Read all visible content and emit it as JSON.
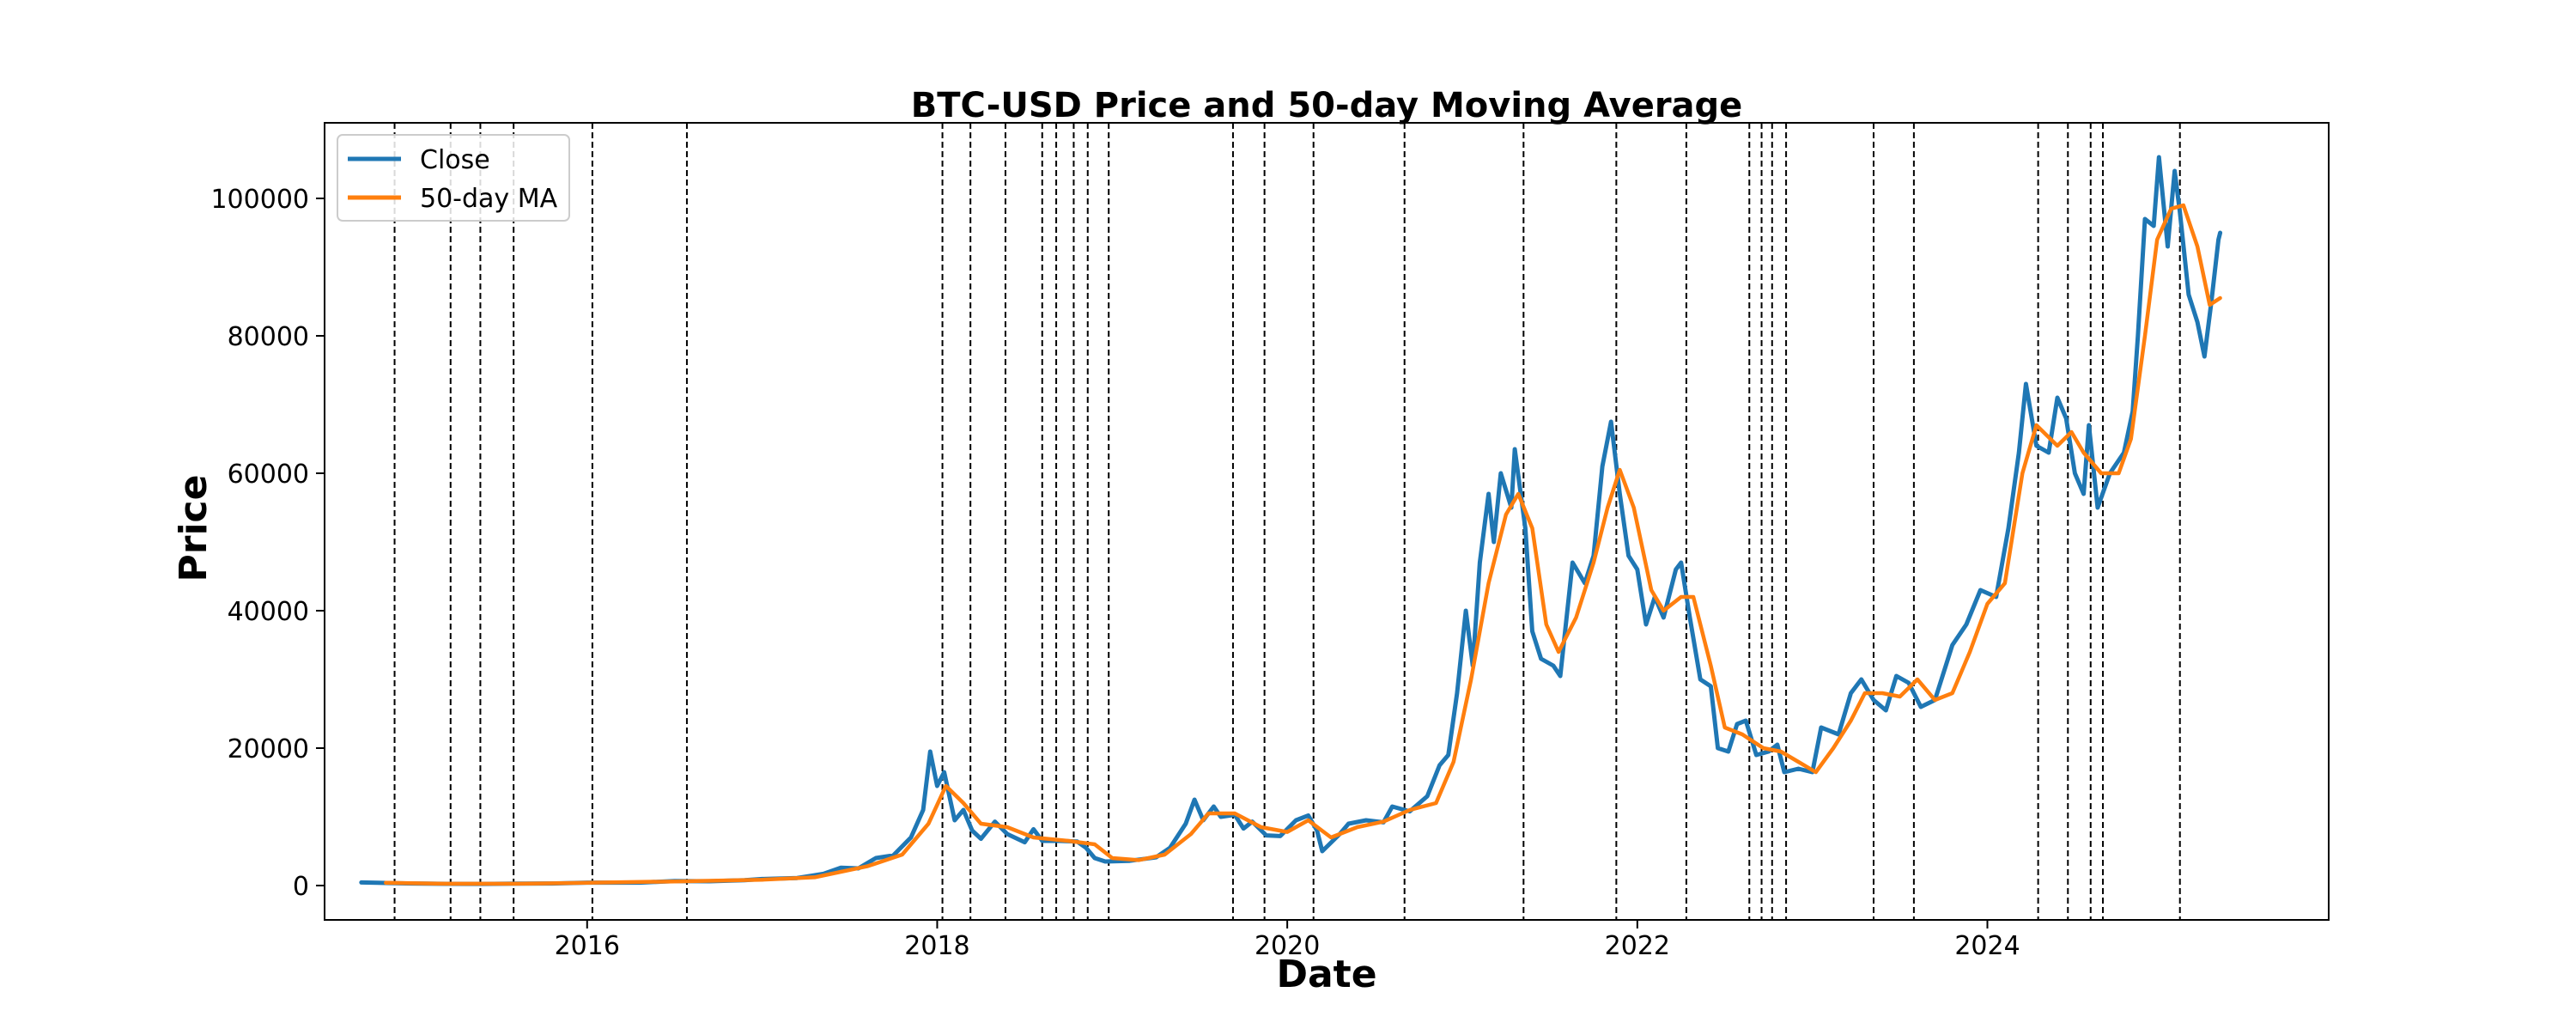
{
  "chart_data": {
    "type": "line",
    "title": "BTC-USD Price and 50-day Moving Average",
    "xlabel": "Date",
    "ylabel": "Price",
    "xlim": [
      2014.5,
      2025.95
    ],
    "ylim": [
      -5000,
      111000
    ],
    "x_ticks": [
      2016,
      2018,
      2020,
      2022,
      2024
    ],
    "x_tick_labels": [
      "2016",
      "2018",
      "2020",
      "2022",
      "2024"
    ],
    "y_ticks": [
      0,
      20000,
      40000,
      60000,
      80000,
      100000
    ],
    "y_tick_labels": [
      "0",
      "20000",
      "40000",
      "60000",
      "80000",
      "100000"
    ],
    "grid": false,
    "legend_position": "upper-left",
    "series": [
      {
        "name": "Close",
        "color": "#1f77b4",
        "points": [
          [
            2014.71,
            450
          ],
          [
            2014.8,
            400
          ],
          [
            2014.9,
            350
          ],
          [
            2015.0,
            300
          ],
          [
            2015.2,
            250
          ],
          [
            2015.4,
            240
          ],
          [
            2015.6,
            270
          ],
          [
            2015.8,
            300
          ],
          [
            2016.0,
            430
          ],
          [
            2016.3,
            420
          ],
          [
            2016.5,
            650
          ],
          [
            2016.7,
            620
          ],
          [
            2016.9,
            780
          ],
          [
            2017.0,
            950
          ],
          [
            2017.2,
            1100
          ],
          [
            2017.35,
            1700
          ],
          [
            2017.45,
            2600
          ],
          [
            2017.55,
            2500
          ],
          [
            2017.65,
            4000
          ],
          [
            2017.75,
            4400
          ],
          [
            2017.85,
            7000
          ],
          [
            2017.92,
            11000
          ],
          [
            2017.96,
            19500
          ],
          [
            2018.0,
            14500
          ],
          [
            2018.04,
            16500
          ],
          [
            2018.1,
            9500
          ],
          [
            2018.15,
            11000
          ],
          [
            2018.2,
            8000
          ],
          [
            2018.25,
            6800
          ],
          [
            2018.33,
            9300
          ],
          [
            2018.4,
            7500
          ],
          [
            2018.5,
            6300
          ],
          [
            2018.55,
            8200
          ],
          [
            2018.6,
            6500
          ],
          [
            2018.7,
            6500
          ],
          [
            2018.8,
            6400
          ],
          [
            2018.85,
            5500
          ],
          [
            2018.9,
            4000
          ],
          [
            2018.96,
            3500
          ],
          [
            2019.1,
            3600
          ],
          [
            2019.25,
            4100
          ],
          [
            2019.33,
            5500
          ],
          [
            2019.42,
            9000
          ],
          [
            2019.47,
            12500
          ],
          [
            2019.52,
            9500
          ],
          [
            2019.58,
            11500
          ],
          [
            2019.62,
            10000
          ],
          [
            2019.7,
            10300
          ],
          [
            2019.75,
            8300
          ],
          [
            2019.8,
            9300
          ],
          [
            2019.88,
            7300
          ],
          [
            2019.96,
            7200
          ],
          [
            2020.05,
            9500
          ],
          [
            2020.12,
            10200
          ],
          [
            2020.17,
            8000
          ],
          [
            2020.2,
            5000
          ],
          [
            2020.3,
            7500
          ],
          [
            2020.35,
            9000
          ],
          [
            2020.45,
            9500
          ],
          [
            2020.55,
            9200
          ],
          [
            2020.6,
            11500
          ],
          [
            2020.7,
            10800
          ],
          [
            2020.8,
            13000
          ],
          [
            2020.87,
            17500
          ],
          [
            2020.92,
            19000
          ],
          [
            2020.97,
            28000
          ],
          [
            2021.02,
            40000
          ],
          [
            2021.06,
            32000
          ],
          [
            2021.1,
            47000
          ],
          [
            2021.15,
            57000
          ],
          [
            2021.18,
            50000
          ],
          [
            2021.22,
            60000
          ],
          [
            2021.28,
            55000
          ],
          [
            2021.3,
            63500
          ],
          [
            2021.36,
            52000
          ],
          [
            2021.4,
            37000
          ],
          [
            2021.45,
            33000
          ],
          [
            2021.52,
            32000
          ],
          [
            2021.56,
            30500
          ],
          [
            2021.6,
            40000
          ],
          [
            2021.63,
            47000
          ],
          [
            2021.7,
            44000
          ],
          [
            2021.75,
            48000
          ],
          [
            2021.8,
            61000
          ],
          [
            2021.85,
            67500
          ],
          [
            2021.9,
            57000
          ],
          [
            2021.95,
            48000
          ],
          [
            2022.0,
            46000
          ],
          [
            2022.05,
            38000
          ],
          [
            2022.1,
            42000
          ],
          [
            2022.15,
            39000
          ],
          [
            2022.22,
            46000
          ],
          [
            2022.25,
            47000
          ],
          [
            2022.3,
            39000
          ],
          [
            2022.36,
            30000
          ],
          [
            2022.42,
            29000
          ],
          [
            2022.46,
            20000
          ],
          [
            2022.52,
            19500
          ],
          [
            2022.57,
            23500
          ],
          [
            2022.62,
            24000
          ],
          [
            2022.68,
            19000
          ],
          [
            2022.75,
            19500
          ],
          [
            2022.8,
            20500
          ],
          [
            2022.84,
            16500
          ],
          [
            2022.92,
            17000
          ],
          [
            2023.0,
            16500
          ],
          [
            2023.05,
            23000
          ],
          [
            2023.15,
            22000
          ],
          [
            2023.22,
            28000
          ],
          [
            2023.28,
            30000
          ],
          [
            2023.35,
            27000
          ],
          [
            2023.42,
            25500
          ],
          [
            2023.48,
            30500
          ],
          [
            2023.55,
            29500
          ],
          [
            2023.62,
            26000
          ],
          [
            2023.7,
            27000
          ],
          [
            2023.8,
            35000
          ],
          [
            2023.88,
            38000
          ],
          [
            2023.96,
            43000
          ],
          [
            2024.05,
            42000
          ],
          [
            2024.12,
            52000
          ],
          [
            2024.18,
            63000
          ],
          [
            2024.22,
            73000
          ],
          [
            2024.28,
            64000
          ],
          [
            2024.35,
            63000
          ],
          [
            2024.4,
            71000
          ],
          [
            2024.45,
            68000
          ],
          [
            2024.5,
            60000
          ],
          [
            2024.55,
            57000
          ],
          [
            2024.58,
            67000
          ],
          [
            2024.63,
            55000
          ],
          [
            2024.7,
            60000
          ],
          [
            2024.78,
            63000
          ],
          [
            2024.83,
            69000
          ],
          [
            2024.86,
            80000
          ],
          [
            2024.9,
            97000
          ],
          [
            2024.95,
            96000
          ],
          [
            2024.98,
            106000
          ],
          [
            2025.03,
            93000
          ],
          [
            2025.07,
            104000
          ],
          [
            2025.1,
            98000
          ],
          [
            2025.15,
            86000
          ],
          [
            2025.2,
            82000
          ],
          [
            2025.24,
            77000
          ],
          [
            2025.28,
            85000
          ],
          [
            2025.32,
            94000
          ],
          [
            2025.33,
            95000
          ]
        ]
      },
      {
        "name": "50-day MA",
        "color": "#ff7f0e",
        "points": [
          [
            2014.85,
            400
          ],
          [
            2015.2,
            260
          ],
          [
            2015.6,
            260
          ],
          [
            2016.0,
            400
          ],
          [
            2016.5,
            600
          ],
          [
            2017.0,
            850
          ],
          [
            2017.3,
            1200
          ],
          [
            2017.6,
            2800
          ],
          [
            2017.8,
            4500
          ],
          [
            2017.95,
            9000
          ],
          [
            2018.05,
            14500
          ],
          [
            2018.15,
            12000
          ],
          [
            2018.25,
            9000
          ],
          [
            2018.4,
            8500
          ],
          [
            2018.55,
            7000
          ],
          [
            2018.75,
            6500
          ],
          [
            2018.9,
            6000
          ],
          [
            2019.0,
            4000
          ],
          [
            2019.15,
            3700
          ],
          [
            2019.3,
            4500
          ],
          [
            2019.45,
            7500
          ],
          [
            2019.55,
            10500
          ],
          [
            2019.7,
            10500
          ],
          [
            2019.85,
            8500
          ],
          [
            2020.0,
            7800
          ],
          [
            2020.12,
            9500
          ],
          [
            2020.25,
            7000
          ],
          [
            2020.4,
            8500
          ],
          [
            2020.55,
            9300
          ],
          [
            2020.7,
            11000
          ],
          [
            2020.85,
            12000
          ],
          [
            2020.95,
            18000
          ],
          [
            2021.05,
            30000
          ],
          [
            2021.15,
            44000
          ],
          [
            2021.25,
            54000
          ],
          [
            2021.32,
            57000
          ],
          [
            2021.4,
            52000
          ],
          [
            2021.48,
            38000
          ],
          [
            2021.55,
            34000
          ],
          [
            2021.65,
            39000
          ],
          [
            2021.75,
            47000
          ],
          [
            2021.83,
            55000
          ],
          [
            2021.9,
            60500
          ],
          [
            2021.98,
            55000
          ],
          [
            2022.08,
            43000
          ],
          [
            2022.15,
            40000
          ],
          [
            2022.25,
            42000
          ],
          [
            2022.32,
            42000
          ],
          [
            2022.42,
            32000
          ],
          [
            2022.5,
            23000
          ],
          [
            2022.6,
            22000
          ],
          [
            2022.72,
            20000
          ],
          [
            2022.82,
            19500
          ],
          [
            2022.92,
            18000
          ],
          [
            2023.02,
            16500
          ],
          [
            2023.12,
            20000
          ],
          [
            2023.22,
            24000
          ],
          [
            2023.3,
            28000
          ],
          [
            2023.4,
            28000
          ],
          [
            2023.5,
            27500
          ],
          [
            2023.6,
            30000
          ],
          [
            2023.7,
            27000
          ],
          [
            2023.8,
            28000
          ],
          [
            2023.9,
            34000
          ],
          [
            2024.0,
            41000
          ],
          [
            2024.1,
            44000
          ],
          [
            2024.2,
            60000
          ],
          [
            2024.28,
            67000
          ],
          [
            2024.4,
            64000
          ],
          [
            2024.48,
            66000
          ],
          [
            2024.55,
            63000
          ],
          [
            2024.65,
            60000
          ],
          [
            2024.75,
            60000
          ],
          [
            2024.82,
            65000
          ],
          [
            2024.9,
            80000
          ],
          [
            2024.97,
            94000
          ],
          [
            2025.05,
            98500
          ],
          [
            2025.12,
            99000
          ],
          [
            2025.2,
            93000
          ],
          [
            2025.27,
            84500
          ],
          [
            2025.33,
            85500
          ]
        ]
      }
    ],
    "vertical_lines": [
      2014.9,
      2015.22,
      2015.39,
      2015.58,
      2016.03,
      2016.57,
      2018.03,
      2018.19,
      2018.39,
      2018.6,
      2018.68,
      2018.78,
      2018.86,
      2018.98,
      2019.69,
      2019.87,
      2020.15,
      2020.67,
      2021.35,
      2021.88,
      2022.28,
      2022.64,
      2022.71,
      2022.77,
      2022.85,
      2023.35,
      2023.58,
      2024.29,
      2024.46,
      2024.59,
      2024.66,
      2025.1
    ]
  }
}
